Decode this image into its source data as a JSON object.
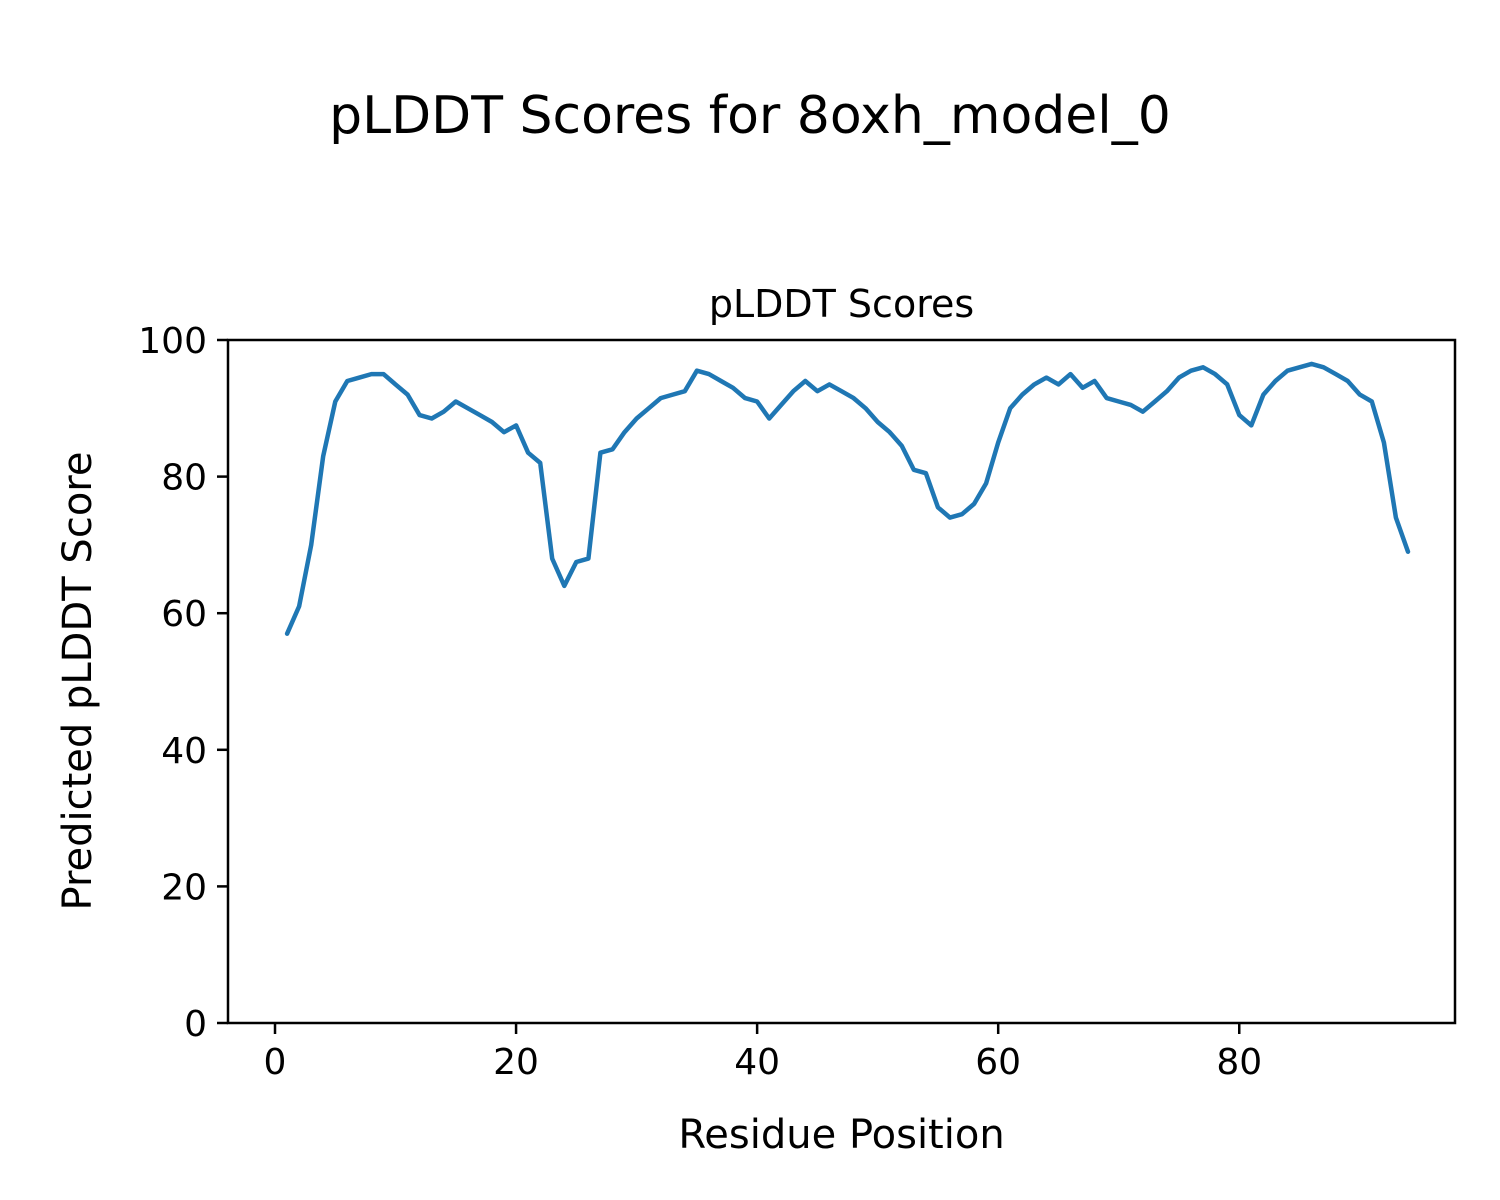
{
  "figure": {
    "suptitle": "pLDDT Scores for 8oxh_model_0"
  },
  "chart_data": {
    "type": "line",
    "title": "pLDDT Scores",
    "xlabel": "Residue Position",
    "ylabel": "Predicted pLDDT Score",
    "xlim": [
      -3.9,
      97.9
    ],
    "ylim": [
      0,
      100
    ],
    "xticks": [
      0,
      20,
      40,
      60,
      80
    ],
    "yticks": [
      0,
      20,
      40,
      60,
      80,
      100
    ],
    "grid": false,
    "legend": "none",
    "line_color": "#1f77b4",
    "line_width": 4.5,
    "series": [
      {
        "name": "pLDDT",
        "x": [
          1,
          2,
          3,
          4,
          5,
          6,
          7,
          8,
          9,
          10,
          11,
          12,
          13,
          14,
          15,
          16,
          17,
          18,
          19,
          20,
          21,
          22,
          23,
          24,
          25,
          26,
          27,
          28,
          29,
          30,
          31,
          32,
          33,
          34,
          35,
          36,
          37,
          38,
          39,
          40,
          41,
          42,
          43,
          44,
          45,
          46,
          47,
          48,
          49,
          50,
          51,
          52,
          53,
          54,
          55,
          56,
          57,
          58,
          59,
          60,
          61,
          62,
          63,
          64,
          65,
          66,
          67,
          68,
          69,
          70,
          71,
          72,
          73,
          74,
          75,
          76,
          77,
          78,
          79,
          80,
          81,
          82,
          83,
          84,
          85,
          86,
          87,
          88,
          89,
          90,
          91,
          92,
          93,
          94
        ],
        "y": [
          57,
          61,
          70,
          83,
          91,
          94,
          94.5,
          95,
          95,
          93.5,
          92,
          89,
          88.5,
          89.5,
          91,
          90,
          89,
          88,
          86.5,
          87.5,
          83.5,
          82,
          68,
          64,
          67.5,
          68,
          83.5,
          84,
          86.5,
          88.5,
          90,
          91.5,
          92,
          92.5,
          95.5,
          95,
          94,
          93,
          91.5,
          91,
          88.5,
          90.5,
          92.5,
          94,
          92.5,
          93.5,
          92.5,
          91.5,
          90,
          88,
          86.5,
          84.5,
          81,
          80.5,
          75.5,
          74,
          74.5,
          76,
          79,
          85,
          90,
          92,
          93.5,
          94.5,
          93.5,
          95,
          93,
          94,
          91.5,
          91,
          90.5,
          89.5,
          91,
          92.5,
          94.5,
          95.5,
          96,
          95,
          93.5,
          89,
          87.5,
          92,
          94,
          95.5,
          96,
          96.5,
          96,
          95,
          94,
          92,
          91,
          85,
          74,
          69
        ]
      }
    ]
  }
}
